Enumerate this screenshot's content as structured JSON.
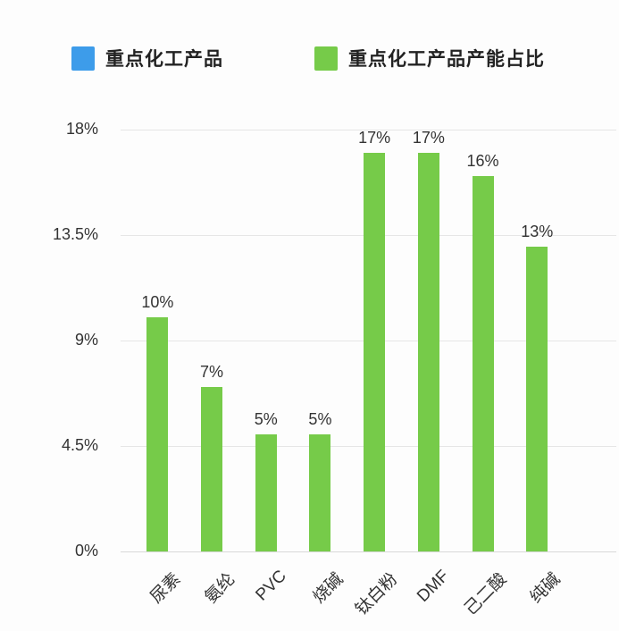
{
  "legend": {
    "items": [
      {
        "name": "primary-series",
        "label": "重点化工产品",
        "color": "#3D9CEA"
      },
      {
        "name": "capacity-share-series",
        "label": "重点化工产品产能占比",
        "color": "#76CB49"
      }
    ]
  },
  "chart_data": {
    "type": "bar",
    "title": "",
    "xlabel": "",
    "ylabel": "",
    "categories": [
      "尿素",
      "氨纶",
      "PVC",
      "烧碱",
      "钛白粉",
      "DMF",
      "己二酸",
      "纯碱"
    ],
    "series": [
      {
        "name": "重点化工产品产能占比",
        "color": "#76CB49",
        "values": [
          10,
          7,
          5,
          5,
          17,
          17,
          16,
          13
        ],
        "value_labels": [
          "10%",
          "7%",
          "5%",
          "5%",
          "17%",
          "17%",
          "16%",
          "13%"
        ]
      }
    ],
    "ylim": [
      0,
      18
    ],
    "yticks": [
      {
        "label": "0%",
        "value": 0
      },
      {
        "label": "4.5%",
        "value": 4.5
      },
      {
        "label": "9%",
        "value": 9
      },
      {
        "label": "13.5%",
        "value": 13.5
      },
      {
        "label": "18%",
        "value": 18
      }
    ],
    "grid": true,
    "legend_position": "top"
  },
  "colors": {
    "text": "#333333",
    "grid": "#e6e6e6",
    "axis": "#d9d9d9",
    "background": "#fdfdfd"
  }
}
